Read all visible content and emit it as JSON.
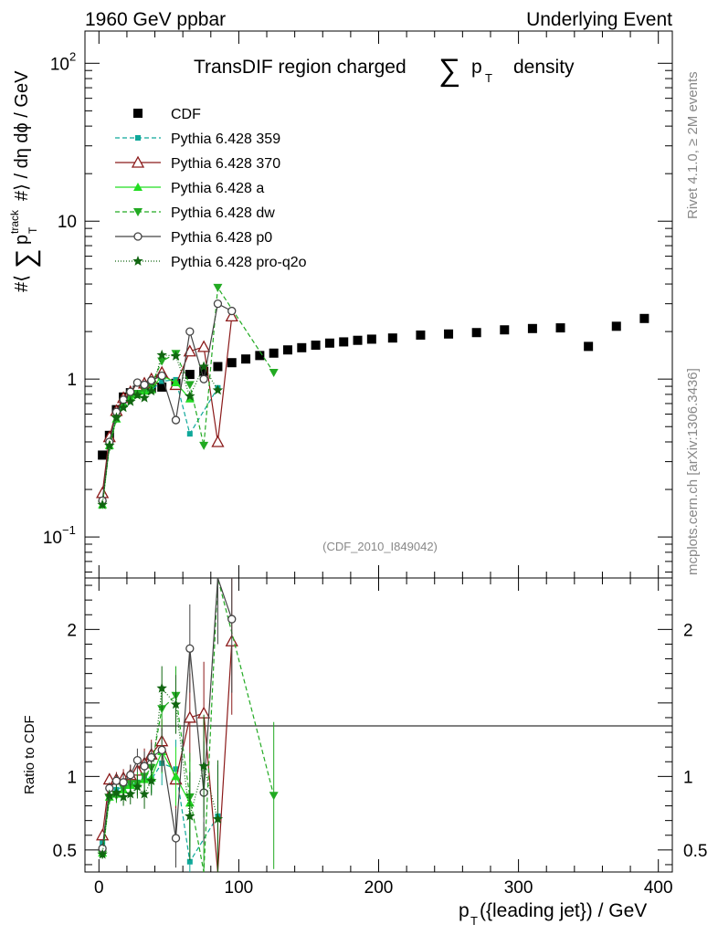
{
  "header": {
    "left": "1960 GeV ppbar",
    "right": "Underlying Event"
  },
  "side": {
    "rivet": "Rivet 4.1.0, ≥ 2M events",
    "mcplots": "mcplots.cern.ch [arXiv:1306.3436]"
  },
  "analysis_id": "(CDF_2010_I849042)",
  "chart_data": {
    "type": "scatter",
    "title_parts": [
      "TransDIF region charged",
      "∑",
      "p",
      "T",
      "density"
    ],
    "ylabel_parts": [
      "#⟨",
      "∑",
      "p",
      "T",
      "track",
      "#⟩ / dη dϕ / GeV"
    ],
    "ratio_ylabel": "Ratio to CDF",
    "xlabel_parts": [
      "p",
      "T",
      "({leading jet}) / GeV"
    ],
    "xlim": [
      -10,
      410
    ],
    "ylim": [
      0.055,
      160
    ],
    "ratio_ylim": [
      0.35,
      2.35
    ],
    "x_ticks": [
      0,
      100,
      200,
      300,
      400
    ],
    "x_tick_labels": [
      "0",
      "100",
      "200",
      "300",
      "400"
    ],
    "y_tick_labels": [
      {
        "value": 100,
        "base": "10",
        "exp": "2"
      },
      {
        "value": 10,
        "base": "10",
        "exp": ""
      },
      {
        "value": 1,
        "base": "1",
        "exp": ""
      },
      {
        "value": 0.1,
        "base": "10",
        "exp": "−1"
      }
    ],
    "ratio_ticks": [
      0.5,
      1,
      2
    ],
    "ratio_tick_labels": [
      "0.5",
      "1",
      "2"
    ],
    "series": [
      {
        "name": "CDF",
        "color": "#000000",
        "marker": "square",
        "dash": "none",
        "x": [
          2.5,
          7.5,
          12.5,
          17.5,
          22.5,
          27.5,
          32.5,
          37.5,
          45,
          55,
          65,
          75,
          85,
          95,
          105,
          115,
          125,
          135,
          145,
          155,
          165,
          175,
          185,
          195,
          210,
          230,
          250,
          270,
          290,
          310,
          330,
          350,
          370,
          390
        ],
        "y": [
          0.33,
          0.44,
          0.64,
          0.77,
          0.82,
          0.85,
          0.86,
          0.87,
          0.89,
          0.94,
          1.07,
          1.12,
          1.2,
          1.27,
          1.34,
          1.41,
          1.46,
          1.53,
          1.58,
          1.64,
          1.69,
          1.72,
          1.76,
          1.79,
          1.82,
          1.9,
          1.93,
          1.97,
          2.05,
          2.09,
          2.11,
          1.61,
          2.16,
          2.42
        ],
        "ratio": [],
        "ratio_err": []
      },
      {
        "name": "Pythia 6.428 359",
        "color": "#0fa89a",
        "marker": "smallsquare",
        "dash": "5,3",
        "x": [
          2.5,
          7.5,
          12.5,
          17.5,
          22.5,
          27.5,
          32.5,
          37.5,
          45,
          55,
          65,
          85
        ],
        "y": [
          0.18,
          0.38,
          0.58,
          0.72,
          0.77,
          0.82,
          0.84,
          0.85,
          0.97,
          0.99,
          0.45,
          0.88
        ],
        "ratio": [
          0.55,
          0.86,
          0.91,
          0.93,
          0.94,
          0.96,
          0.98,
          0.98,
          1.09,
          1.05,
          0.42,
          0.73
        ],
        "ratio_err": [
          0.03,
          0.04,
          0.05,
          0.06,
          0.07,
          0.08,
          0.1,
          0.1,
          0.15,
          0.2,
          0.3,
          0.35
        ]
      },
      {
        "name": "Pythia 6.428 370",
        "color": "#8b1a1a",
        "marker": "triangle-open",
        "dash": "none",
        "x": [
          2.5,
          7.5,
          12.5,
          17.5,
          22.5,
          27.5,
          32.5,
          37.5,
          45,
          55,
          65,
          75,
          85,
          95
        ],
        "y": [
          0.19,
          0.43,
          0.63,
          0.76,
          0.83,
          0.89,
          0.94,
          1.0,
          1.1,
          0.92,
          1.5,
          1.6,
          0.4,
          2.5
        ],
        "ratio": [
          0.6,
          0.98,
          0.98,
          0.99,
          1.01,
          1.04,
          1.09,
          1.15,
          1.24,
          0.98,
          1.4,
          1.43,
          0.33,
          1.92
        ],
        "ratio_err": [
          0.03,
          0.04,
          0.05,
          0.06,
          0.07,
          0.08,
          0.1,
          0.1,
          0.15,
          0.2,
          0.3,
          0.35,
          0.4,
          0.5
        ]
      },
      {
        "name": "Pythia 6.428 a",
        "color": "#22dd22",
        "marker": "triangle",
        "dash": "none",
        "x": [
          2.5,
          7.5,
          12.5,
          17.5,
          22.5,
          27.5,
          32.5,
          37.5,
          45,
          55,
          65
        ],
        "y": [
          0.16,
          0.38,
          0.56,
          0.7,
          0.77,
          0.8,
          0.84,
          0.86,
          1.05,
          0.95,
          0.75
        ],
        "ratio": [
          0.48,
          0.86,
          0.88,
          0.91,
          0.94,
          0.95,
          0.98,
          0.99,
          1.17,
          1.0,
          0.82
        ],
        "ratio_err": [
          0.03,
          0.04,
          0.05,
          0.06,
          0.07,
          0.08,
          0.1,
          0.1,
          0.15,
          0.2,
          0.3
        ]
      },
      {
        "name": "Pythia 6.428 dw",
        "color": "#22aa22",
        "marker": "triangle-down",
        "dash": "5,3",
        "x": [
          2.5,
          7.5,
          12.5,
          17.5,
          22.5,
          27.5,
          32.5,
          37.5,
          45,
          55,
          65,
          75,
          85,
          125
        ],
        "y": [
          0.16,
          0.37,
          0.56,
          0.71,
          0.78,
          0.81,
          0.86,
          0.92,
          1.3,
          1.45,
          0.92,
          0.38,
          3.8,
          1.1
        ],
        "ratio": [
          0.47,
          0.85,
          0.87,
          0.92,
          0.95,
          0.95,
          1.0,
          1.06,
          1.46,
          1.55,
          0.86,
          0.34,
          3.1,
          0.87
        ],
        "ratio_err": [
          0.03,
          0.04,
          0.05,
          0.06,
          0.07,
          0.08,
          0.1,
          0.1,
          0.15,
          0.2,
          0.3,
          0.35,
          0.8,
          0.5
        ]
      },
      {
        "name": "Pythia 6.428 p0",
        "color": "#444444",
        "marker": "circle-open",
        "dash": "none",
        "x": [
          2.5,
          7.5,
          12.5,
          17.5,
          22.5,
          27.5,
          32.5,
          37.5,
          45,
          55,
          65,
          75,
          85,
          95
        ],
        "y": [
          0.17,
          0.4,
          0.62,
          0.74,
          0.83,
          0.95,
          0.92,
          0.98,
          1.05,
          0.55,
          2.0,
          1.0,
          3.0,
          2.7
        ],
        "ratio": [
          0.51,
          0.92,
          0.97,
          0.96,
          1.01,
          1.11,
          1.07,
          1.13,
          1.18,
          0.58,
          1.87,
          0.89,
          2.5,
          2.07
        ],
        "ratio_err": [
          0.03,
          0.04,
          0.05,
          0.06,
          0.07,
          0.08,
          0.1,
          0.1,
          0.15,
          0.2,
          0.3,
          0.35,
          0.6,
          0.5
        ]
      },
      {
        "name": "Pythia 6.428 pro-q2o",
        "color": "#116611",
        "marker": "star",
        "dash": "1,2",
        "x": [
          2.5,
          7.5,
          12.5,
          17.5,
          22.5,
          27.5,
          32.5,
          37.5,
          45,
          55,
          65,
          75,
          85
        ],
        "y": [
          0.16,
          0.38,
          0.57,
          0.66,
          0.72,
          0.79,
          0.76,
          0.84,
          1.42,
          1.4,
          0.78,
          1.2,
          0.85
        ],
        "ratio": [
          0.47,
          0.87,
          0.89,
          0.86,
          0.88,
          0.93,
          0.88,
          0.97,
          1.6,
          1.49,
          0.73,
          1.07,
          0.71
        ],
        "ratio_err": [
          0.03,
          0.04,
          0.05,
          0.06,
          0.07,
          0.08,
          0.1,
          0.1,
          0.15,
          0.2,
          0.3,
          0.35,
          0.4
        ]
      }
    ]
  }
}
